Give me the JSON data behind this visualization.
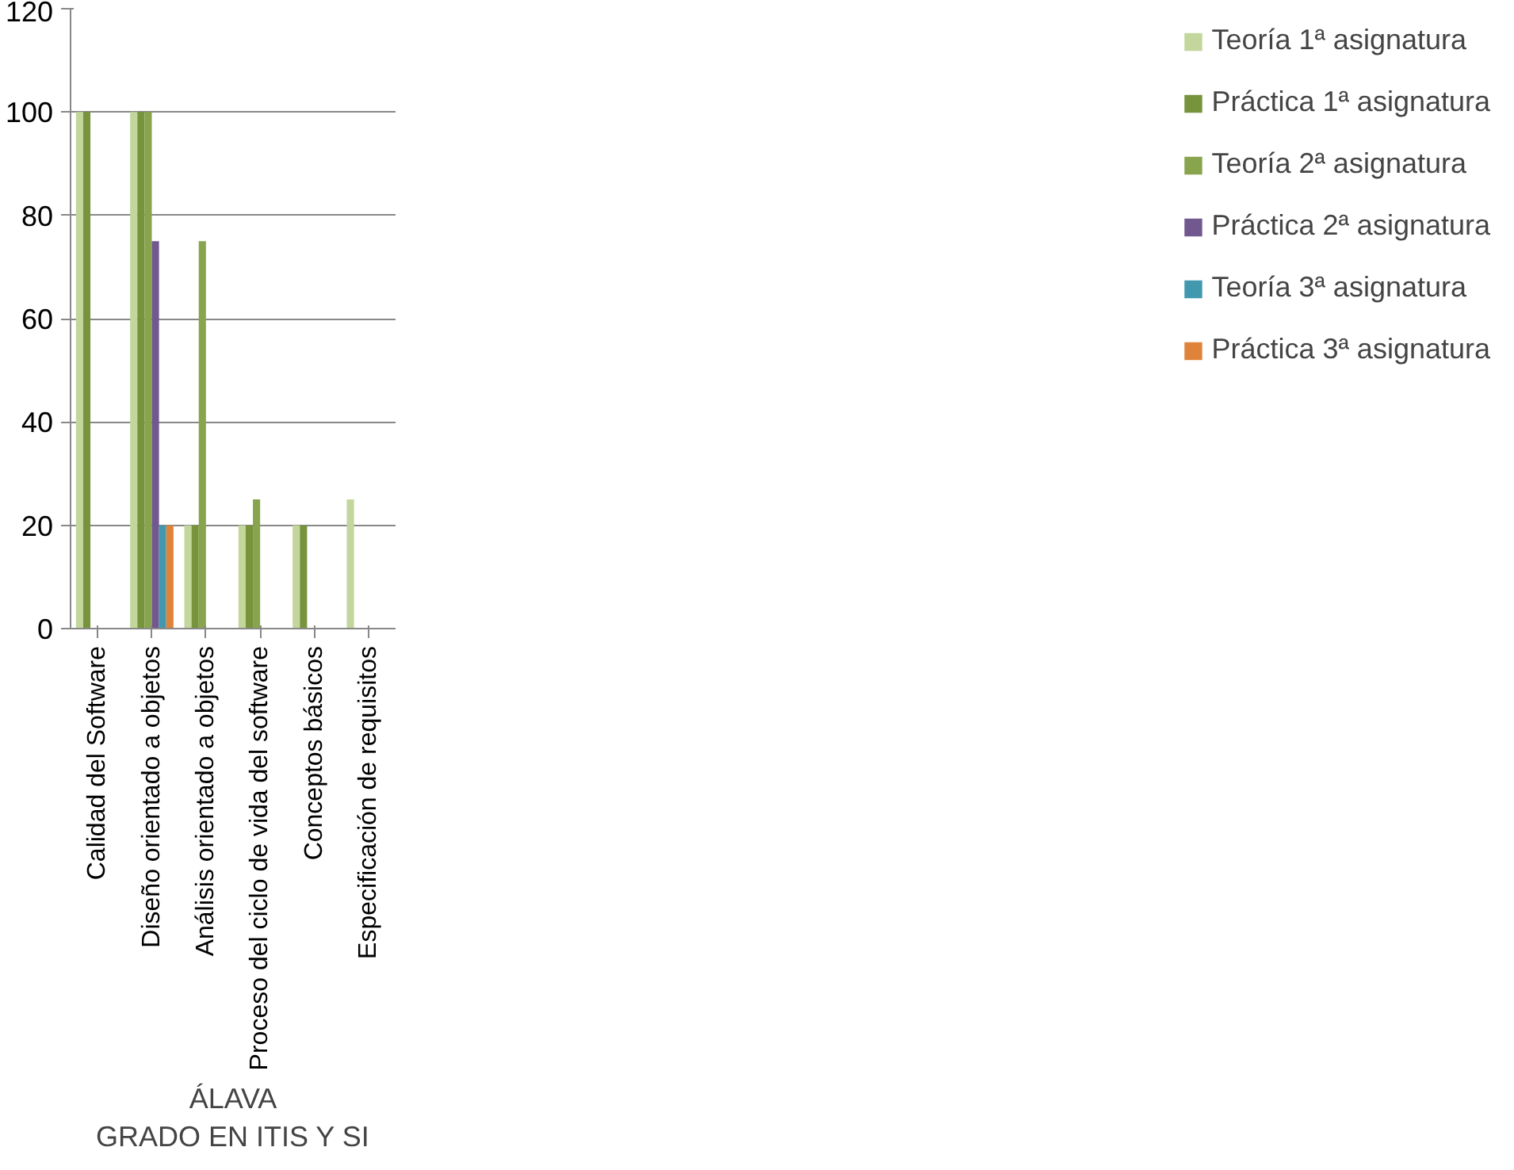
{
  "chart_data": {
    "type": "bar",
    "xlabel": "ÁLAVA\nGRADO EN ITIS Y SI",
    "categories": [
      "Calidad del Software",
      "Diseño orientado a objetos",
      "Análisis orientado a objetos",
      "Proceso del ciclo de vida del software",
      "Conceptos básicos",
      "Especificación de requisitos"
    ],
    "series": [
      {
        "name": "Teoría 1ª asignatura",
        "color": "#c3d69b",
        "values": [
          100,
          100,
          20,
          20,
          20,
          25
        ]
      },
      {
        "name": "Práctica 1ª asignatura",
        "color": "#77933c",
        "values": [
          100,
          100,
          20,
          20,
          20,
          null
        ]
      },
      {
        "name": "Teoría 2ª asignatura",
        "color": "#88a44c",
        "values": [
          null,
          100,
          75,
          25,
          null,
          null
        ]
      },
      {
        "name": "Práctica 2ª asignatura",
        "color": "#71588f",
        "values": [
          null,
          75,
          null,
          null,
          null,
          null
        ]
      },
      {
        "name": "Teoría 3ª asignatura",
        "color": "#4198af",
        "values": [
          null,
          20,
          null,
          null,
          null,
          null
        ]
      },
      {
        "name": "Práctica 3ª asignatura",
        "color": "#e0833a",
        "values": [
          null,
          20,
          null,
          null,
          null,
          null
        ]
      }
    ],
    "ylim": [
      0,
      120
    ],
    "yticks": [
      0,
      20,
      40,
      60,
      80,
      100,
      120
    ],
    "grid": "y",
    "legend": "right"
  }
}
